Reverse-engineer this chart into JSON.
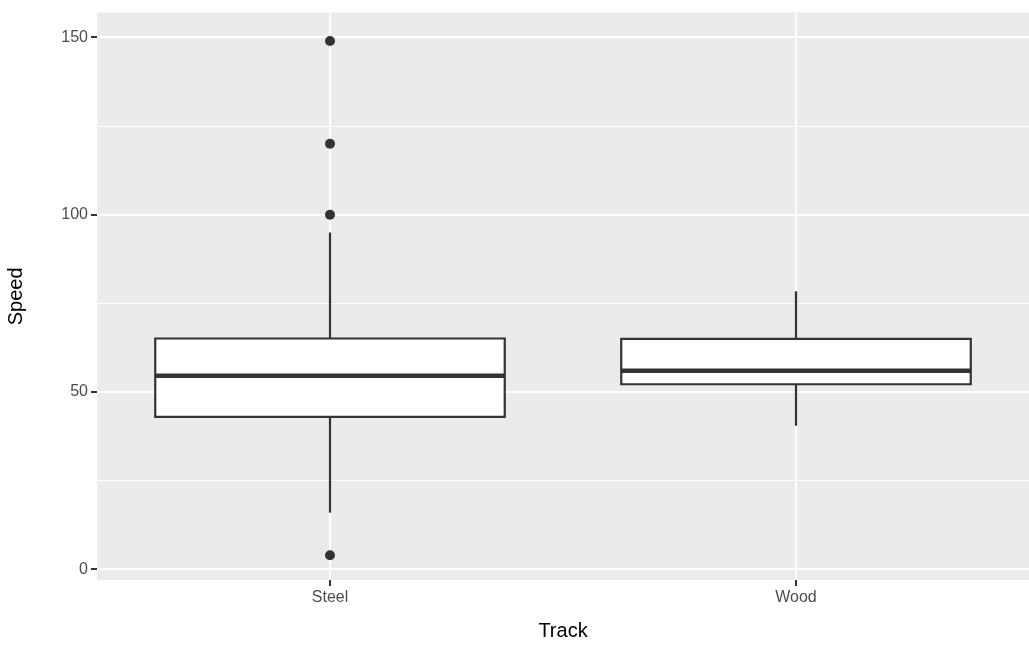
{
  "chart_data": {
    "type": "box",
    "xlabel": "Track",
    "ylabel": "Speed",
    "categories": [
      "Steel",
      "Wood"
    ],
    "boxes": [
      {
        "low": 16,
        "q1": 43,
        "median": 54.6,
        "q3": 65.1,
        "high": 95,
        "outliers": [
          149,
          120,
          100,
          4
        ]
      },
      {
        "low": 40.5,
        "q1": 52.2,
        "median": 56,
        "q3": 65,
        "high": 78.4
      }
    ],
    "color": "#333333",
    "ylim": [
      -3,
      157
    ],
    "yticks": [
      0,
      {
        "value": 25,
        "label": null
      },
      50,
      {
        "value": 75,
        "label": null
      },
      100,
      {
        "value": 125,
        "label": null
      },
      150
    ],
    "grid": true,
    "legend": false
  }
}
